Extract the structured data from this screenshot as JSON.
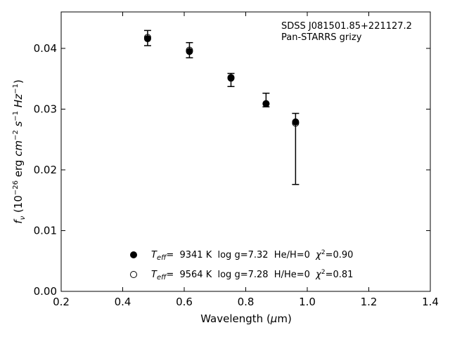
{
  "chart_data": {
    "type": "scatter",
    "xlabel": "Wavelength (μm)",
    "ylabel": "f_ν (10^-26 erg cm^-2 s^-1 Hz^-1)",
    "xlim": [
      0.2,
      1.4
    ],
    "ylim": [
      0.0,
      0.046
    ],
    "x_ticks": [
      "0.2",
      "0.4",
      "0.6",
      "0.8",
      "1.0",
      "1.2",
      "1.4"
    ],
    "y_ticks": [
      "0.00",
      "0.01",
      "0.02",
      "0.03",
      "0.04"
    ],
    "annotations": [
      "SDSS J081501.85+221127.2",
      "Pan-STARRS grizy"
    ],
    "legend_position": "lower center",
    "observed": {
      "x": [
        0.481,
        0.617,
        0.752,
        0.866,
        0.962
      ],
      "y": [
        0.0417,
        0.0397,
        0.0348,
        0.0315,
        0.0235
      ],
      "yerr_low": [
        0.00125,
        0.00125,
        0.00108,
        0.00112,
        0.0059
      ],
      "yerr_high": [
        0.00125,
        0.00125,
        0.00108,
        0.00112,
        0.0058
      ]
    },
    "series": [
      {
        "name": "T_eff= 9341 K log g=7.32 He/H=0 χ²=0.90",
        "marker": "filled-circle",
        "x": [
          0.481,
          0.617,
          0.752,
          0.866,
          0.962
        ],
        "y": [
          0.0416,
          0.0395,
          0.0351,
          0.0309,
          0.0279
        ]
      },
      {
        "name": "T_eff= 9564 K log g=7.28 H/He=0 χ²=0.81",
        "marker": "open-circle",
        "x": [
          0.481,
          0.617,
          0.752,
          0.866,
          0.962
        ],
        "y": [
          0.0418,
          0.0397,
          0.0352,
          0.0309,
          0.0277
        ]
      }
    ]
  },
  "legend": {
    "entries": [
      {
        "teff_sym": "T",
        "teff_sub": "eff",
        "text": "=  9341 K  log g=7.32  He/H=0  ",
        "chi_sym": "χ",
        "chi_sup": "2",
        "chi_val": "=0.90"
      },
      {
        "teff_sym": "T",
        "teff_sub": "eff",
        "text": "=  9564 K  log g=7.28  H/He=0  ",
        "chi_sym": "χ",
        "chi_sup": "2",
        "chi_val": "=0.81"
      }
    ]
  },
  "text": {
    "annot_line1": "SDSS J081501.85+221127.2",
    "annot_line2": "Pan-STARRS grizy",
    "xlabel_main": "Wavelength (",
    "xlabel_mu": "μ",
    "xlabel_unit": "m)",
    "ylabel_f": "f",
    "ylabel_nu": "ν",
    "ylabel_paren": " (10",
    "ylabel_exp26": "−26",
    "ylabel_erg": " erg ",
    "ylabel_cm": "cm",
    "ylabel_exp2": "−2",
    "ylabel_s": " s",
    "ylabel_exp1": "−1",
    "ylabel_hz": " Hz",
    "ylabel_exp1b": "−1",
    "ylabel_close": ")"
  },
  "colors": {
    "marker": "#000000",
    "background": "#ffffff"
  }
}
